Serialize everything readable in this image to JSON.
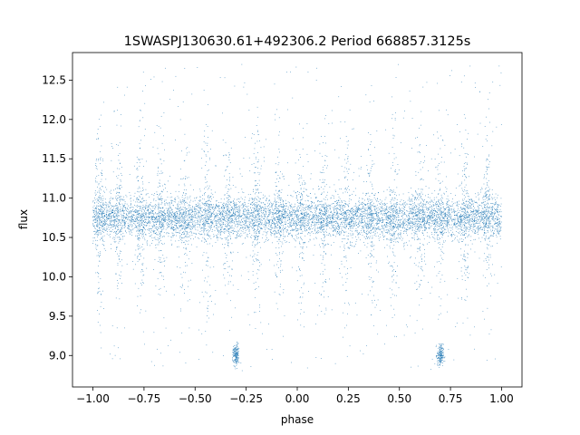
{
  "chart_data": {
    "type": "scatter",
    "title": "1SWASPJ130630.61+492306.2 Period 668857.3125s",
    "xlabel": "phase",
    "ylabel": "flux",
    "xlim": [
      -1.1,
      1.1
    ],
    "ylim": [
      8.6,
      12.85
    ],
    "x_ticks": [
      -1.0,
      -0.75,
      -0.5,
      -0.25,
      0.0,
      0.25,
      0.5,
      0.75,
      1.0
    ],
    "x_tick_labels": [
      "−1.00",
      "−0.75",
      "−0.50",
      "−0.25",
      "0.00",
      "0.25",
      "0.50",
      "0.75",
      "1.00"
    ],
    "y_ticks": [
      9.0,
      9.5,
      10.0,
      10.5,
      11.0,
      11.5,
      12.0,
      12.5
    ],
    "y_tick_labels": [
      "9.0",
      "9.5",
      "10.0",
      "10.5",
      "11.0",
      "11.5",
      "12.0",
      "12.5"
    ],
    "grid": false,
    "marker_color": "#1f77b4",
    "series": [
      {
        "baseline_flux": 10.75,
        "x_range": [
          -1.0,
          1.0
        ],
        "dip_centers": [
          -0.3,
          0.7
        ],
        "dip_flux": 9.0
      }
    ]
  }
}
